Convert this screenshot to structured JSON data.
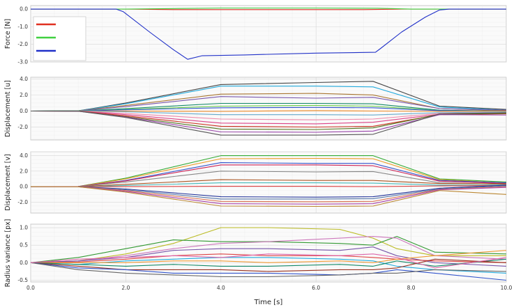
{
  "chart_data": [
    {
      "type": "line",
      "ylabel": "Force [N]",
      "xlim": [
        0,
        10
      ],
      "ylim": [
        -3.0,
        0.2
      ],
      "yticks": [
        "0.0",
        "-1.0",
        "-2.0",
        "-3.0"
      ],
      "grid": true,
      "legend": {
        "position": "top-left",
        "entries": [
          {
            "color": "#e03020",
            "label": ""
          },
          {
            "color": "#40d040",
            "label": ""
          },
          {
            "color": "#2030c8",
            "label": ""
          }
        ]
      },
      "series": [
        {
          "color": "#e03020",
          "x": [
            0,
            2.0,
            3.0,
            5.0,
            7.0,
            7.8,
            10
          ],
          "y": [
            0,
            0,
            -0.03,
            -0.03,
            -0.03,
            0,
            0
          ]
        },
        {
          "color": "#40d040",
          "x": [
            0,
            2.0,
            3.0,
            4.0,
            6.0,
            7.3,
            8.0,
            10
          ],
          "y": [
            0,
            0,
            0.03,
            0.06,
            0.06,
            0.05,
            0,
            0
          ]
        },
        {
          "color": "#2030c8",
          "x": [
            0,
            1.8,
            1.95,
            2.5,
            3.0,
            3.3,
            3.6,
            4.5,
            6.0,
            7.25,
            7.35,
            7.8,
            8.3,
            8.6,
            8.8,
            10
          ],
          "y": [
            0,
            0,
            -0.15,
            -1.3,
            -2.3,
            -2.85,
            -2.65,
            -2.6,
            -2.5,
            -2.45,
            -2.25,
            -1.3,
            -0.45,
            -0.05,
            0,
            0
          ]
        }
      ]
    },
    {
      "type": "line",
      "ylabel": "Displacement [u]",
      "xlim": [
        0,
        10
      ],
      "ylim": [
        -3.6,
        4.2
      ],
      "yticks": [
        "4.0",
        "2.0",
        "0.0",
        "-2.0"
      ],
      "grid": true,
      "series": [
        {
          "color": "#444444",
          "x": [
            0,
            1,
            2,
            4,
            6,
            7.2,
            8.6,
            10
          ],
          "y": [
            0,
            0.02,
            1.0,
            3.3,
            3.55,
            3.7,
            0.6,
            0.2
          ]
        },
        {
          "color": "#22aadd",
          "x": [
            0,
            1,
            2,
            4,
            6,
            7.2,
            8.6,
            10
          ],
          "y": [
            0,
            0.02,
            0.9,
            3.1,
            3.1,
            3.0,
            0.5,
            0.1
          ]
        },
        {
          "color": "#aa7733",
          "x": [
            0,
            1,
            2,
            4,
            6,
            7.2,
            8.6,
            10
          ],
          "y": [
            0,
            0.02,
            0.7,
            2.1,
            2.2,
            2.0,
            0.3,
            0.05
          ]
        },
        {
          "color": "#7755aa",
          "x": [
            0,
            1,
            2,
            4,
            6,
            7.2,
            8.6,
            10
          ],
          "y": [
            0,
            0.02,
            0.55,
            1.8,
            1.6,
            1.7,
            0.3,
            0.1
          ]
        },
        {
          "color": "#118866",
          "x": [
            0,
            1,
            2,
            4,
            6,
            7.2,
            8.6,
            10
          ],
          "y": [
            0,
            0.01,
            0.3,
            0.95,
            0.95,
            0.9,
            0.1,
            0.0
          ]
        },
        {
          "color": "#66cc44",
          "x": [
            0,
            1,
            2,
            4,
            6,
            7.2,
            8.6,
            10
          ],
          "y": [
            0,
            0.01,
            0.2,
            0.6,
            0.7,
            0.6,
            0.05,
            0.0
          ]
        },
        {
          "color": "#3355cc",
          "x": [
            0,
            1,
            2,
            4,
            6,
            7.2,
            8.6,
            10
          ],
          "y": [
            0,
            0.0,
            0.15,
            0.4,
            0.45,
            0.4,
            0.05,
            0.0
          ]
        },
        {
          "color": "#ee8822",
          "x": [
            0,
            1,
            2,
            4,
            6,
            7.2,
            8.6,
            10
          ],
          "y": [
            0,
            0.0,
            0.0,
            -0.05,
            0.05,
            0.0,
            -0.05,
            0.0
          ]
        },
        {
          "color": "#66aacc",
          "x": [
            0,
            1,
            2,
            4,
            6,
            7.2,
            8.6,
            10
          ],
          "y": [
            0,
            0.0,
            -0.1,
            -0.45,
            -0.45,
            -0.5,
            -0.2,
            -0.1
          ]
        },
        {
          "color": "#ee88aa",
          "x": [
            0,
            1,
            2,
            4,
            6,
            7.2,
            8.6,
            10
          ],
          "y": [
            0,
            -0.01,
            -0.3,
            -1.0,
            -1.1,
            -1.0,
            -0.3,
            -0.2
          ]
        },
        {
          "color": "#dd4488",
          "x": [
            0,
            1,
            2,
            4,
            6,
            7.2,
            8.6,
            10
          ],
          "y": [
            0,
            -0.01,
            -0.45,
            -1.5,
            -1.6,
            -1.4,
            -0.4,
            -0.3
          ]
        },
        {
          "color": "#cc3322",
          "x": [
            0,
            1,
            2,
            4,
            6,
            7.2,
            8.6,
            10
          ],
          "y": [
            0,
            -0.01,
            -0.6,
            -1.9,
            -2.0,
            -1.9,
            -0.45,
            -0.35
          ]
        },
        {
          "color": "#557722",
          "x": [
            0,
            1,
            2,
            4,
            6,
            7.2,
            8.6,
            10
          ],
          "y": [
            0,
            -0.02,
            -0.7,
            -2.25,
            -2.3,
            -2.1,
            -0.4,
            -0.3
          ]
        },
        {
          "color": "#9944aa",
          "x": [
            0,
            1,
            2,
            4,
            6,
            7.2,
            8.6,
            10
          ],
          "y": [
            0,
            -0.02,
            -0.75,
            -2.6,
            -2.65,
            -2.5,
            -0.45,
            -0.5
          ]
        },
        {
          "color": "#555555",
          "x": [
            0,
            1,
            2,
            4,
            6,
            7.2,
            8.6,
            10
          ],
          "y": [
            0,
            -0.02,
            -0.8,
            -3.0,
            -3.0,
            -2.9,
            -0.35,
            -0.2
          ]
        }
      ]
    },
    {
      "type": "line",
      "ylabel": "Displacement [v]",
      "xlim": [
        0,
        10
      ],
      "ylim": [
        -3.4,
        4.5
      ],
      "yticks": [
        "4.0",
        "2.0",
        "0.0",
        "-2.0"
      ],
      "grid": true,
      "series": [
        {
          "color": "#33aa33",
          "x": [
            0,
            1,
            2,
            4,
            6,
            7.2,
            8.6,
            10
          ],
          "y": [
            0,
            0.02,
            1.1,
            4.0,
            4.0,
            4.0,
            1.0,
            0.6
          ]
        },
        {
          "color": "#ee9922",
          "x": [
            0,
            1,
            2,
            4,
            6,
            7.2,
            8.6,
            10
          ],
          "y": [
            0,
            0.02,
            1.0,
            3.6,
            3.65,
            3.6,
            0.9,
            0.5
          ]
        },
        {
          "color": "#3355cc",
          "x": [
            0,
            1,
            2,
            4,
            6,
            7.2,
            8.6,
            10
          ],
          "y": [
            0,
            0.02,
            0.8,
            3.1,
            3.0,
            3.0,
            0.8,
            0.5
          ]
        },
        {
          "color": "#cc2255",
          "x": [
            0,
            1,
            2,
            4,
            6,
            7.2,
            8.6,
            10
          ],
          "y": [
            0,
            0.02,
            0.75,
            2.8,
            2.8,
            2.7,
            0.7,
            0.4
          ]
        },
        {
          "color": "#888888",
          "x": [
            0,
            1,
            2,
            4,
            6,
            7.2,
            8.6,
            10
          ],
          "y": [
            0,
            0.01,
            0.6,
            2.0,
            1.9,
            1.95,
            0.5,
            0.3
          ]
        },
        {
          "color": "#aa5522",
          "x": [
            0,
            1,
            2,
            4,
            6,
            7.2,
            8.6,
            10
          ],
          "y": [
            0,
            0.01,
            0.3,
            0.9,
            0.8,
            0.8,
            0.4,
            0.35
          ]
        },
        {
          "color": "#44bbbb",
          "x": [
            0,
            1,
            2,
            4,
            6,
            7.2,
            8.6,
            10
          ],
          "y": [
            0,
            0.0,
            0.15,
            0.5,
            0.5,
            0.45,
            0.2,
            0.2
          ]
        },
        {
          "color": "#dd4444",
          "x": [
            0,
            1,
            2,
            4,
            6,
            7.2,
            8.6,
            10
          ],
          "y": [
            0,
            0.0,
            0.0,
            0.05,
            0.05,
            0.0,
            0.1,
            0.15
          ]
        },
        {
          "color": "#223399",
          "x": [
            0,
            1,
            2,
            4,
            6,
            7.2,
            8.6,
            10
          ],
          "y": [
            0,
            0.0,
            -0.3,
            -1.3,
            -1.35,
            -1.3,
            -0.2,
            0.2
          ]
        },
        {
          "color": "#5577aa",
          "x": [
            0,
            1,
            2,
            4,
            6,
            7.2,
            8.6,
            10
          ],
          "y": [
            0,
            -0.01,
            -0.4,
            -1.6,
            -1.6,
            -1.55,
            -0.3,
            0.1
          ]
        },
        {
          "color": "#dd7755",
          "x": [
            0,
            1,
            2,
            4,
            6,
            7.2,
            8.6,
            10
          ],
          "y": [
            0,
            -0.01,
            -0.5,
            -1.9,
            -1.95,
            -1.9,
            -0.35,
            0.0
          ]
        },
        {
          "color": "#aa44aa",
          "x": [
            0,
            1,
            2,
            4,
            6,
            7.2,
            8.6,
            10
          ],
          "y": [
            0,
            -0.02,
            -0.6,
            -2.2,
            -2.25,
            -2.2,
            -0.4,
            -0.1
          ]
        },
        {
          "color": "#bb8833",
          "x": [
            0,
            1,
            2,
            4,
            6,
            7.2,
            8.6,
            10
          ],
          "y": [
            0,
            -0.02,
            -0.7,
            -2.5,
            -2.55,
            -2.5,
            -0.5,
            -1.0
          ]
        }
      ]
    },
    {
      "type": "line",
      "ylabel": "Radius variance [px]",
      "xlabel": "Time [s]",
      "xlim": [
        0,
        10
      ],
      "ylim": [
        -0.55,
        1.1
      ],
      "yticks": [
        "1.0",
        "0.5",
        "0.0",
        "-0.5"
      ],
      "xticks": [
        "0.0",
        "2.0",
        "4.0",
        "6.0",
        "8.0",
        "10.0"
      ],
      "grid": true,
      "series": [
        {
          "color": "#bbbb22",
          "x": [
            0,
            1,
            2,
            3,
            4,
            5,
            6.5,
            7.2,
            7.7,
            8.5,
            10
          ],
          "y": [
            0,
            0.05,
            0.25,
            0.55,
            1.0,
            1.0,
            0.95,
            0.7,
            0.4,
            0.2,
            0.2
          ]
        },
        {
          "color": "#339933",
          "x": [
            0,
            1,
            2,
            3,
            4,
            5,
            6.5,
            7.2,
            7.7,
            8.5,
            10
          ],
          "y": [
            0,
            0.15,
            0.4,
            0.65,
            0.6,
            0.6,
            0.55,
            0.5,
            0.75,
            0.3,
            0.25
          ]
        },
        {
          "color": "#cc77bb",
          "x": [
            0,
            1,
            2,
            3,
            4,
            5,
            6.5,
            7.2,
            7.7,
            8.5,
            10
          ],
          "y": [
            0,
            0.05,
            0.2,
            0.4,
            0.55,
            0.6,
            0.7,
            0.75,
            0.7,
            0.2,
            0.1
          ]
        },
        {
          "color": "#7755aa",
          "x": [
            0,
            1,
            2,
            3,
            4,
            5,
            6.5,
            7.2,
            7.7,
            8.5,
            10
          ],
          "y": [
            0,
            0.05,
            0.15,
            0.35,
            0.4,
            0.4,
            0.35,
            0.45,
            0.2,
            0.0,
            -0.1
          ]
        },
        {
          "color": "#dd4444",
          "x": [
            0,
            1,
            2,
            3,
            4,
            5,
            6.5,
            7.2,
            7.7,
            8.5,
            10
          ],
          "y": [
            0,
            0.02,
            0.1,
            0.2,
            0.25,
            0.2,
            0.2,
            0.15,
            0.1,
            0.05,
            0.0
          ]
        },
        {
          "color": "#22aadd",
          "x": [
            0,
            1,
            2,
            3,
            4,
            5,
            6.5,
            7.2,
            7.7,
            8.5,
            10
          ],
          "y": [
            0,
            -0.05,
            0.05,
            0.1,
            0.15,
            0.15,
            0.1,
            0.05,
            -0.1,
            -0.2,
            -0.3
          ]
        },
        {
          "color": "#ee9933",
          "x": [
            0,
            1,
            2,
            3,
            4,
            5,
            6.5,
            7.2,
            7.7,
            8.5,
            10
          ],
          "y": [
            0,
            0.0,
            0.0,
            0.05,
            0.05,
            0.0,
            0.05,
            0.0,
            0.1,
            0.2,
            0.35
          ]
        },
        {
          "color": "#118866",
          "x": [
            0,
            1,
            2,
            3,
            4,
            5,
            6.5,
            7.2,
            7.7,
            8.5,
            10
          ],
          "y": [
            0,
            -0.05,
            -0.1,
            -0.05,
            -0.1,
            -0.1,
            -0.05,
            -0.1,
            0.05,
            -0.1,
            0.1
          ]
        },
        {
          "color": "#993322",
          "x": [
            0,
            1,
            2,
            3,
            4,
            5,
            6.5,
            7.2,
            7.7,
            8.5,
            10
          ],
          "y": [
            0,
            -0.1,
            -0.2,
            -0.2,
            -0.2,
            -0.25,
            -0.2,
            -0.2,
            -0.15,
            0.1,
            0.0
          ]
        },
        {
          "color": "#3355cc",
          "x": [
            0,
            1,
            2,
            3,
            4,
            5,
            6.5,
            7.2,
            7.7,
            8.5,
            10
          ],
          "y": [
            0,
            -0.15,
            -0.2,
            -0.3,
            -0.3,
            -0.3,
            -0.35,
            -0.3,
            -0.2,
            -0.3,
            -0.5
          ]
        },
        {
          "color": "#666666",
          "x": [
            0,
            1,
            2,
            3,
            4,
            5,
            6.5,
            7.2,
            7.7,
            8.5,
            10
          ],
          "y": [
            0,
            -0.2,
            -0.3,
            -0.35,
            -0.4,
            -0.4,
            -0.35,
            -0.3,
            -0.3,
            -0.2,
            -0.25
          ]
        },
        {
          "color": "#dd66aa",
          "x": [
            0,
            1,
            2,
            3,
            4,
            5,
            6.5,
            7.2,
            7.7,
            8.5,
            10
          ],
          "y": [
            0,
            0.1,
            0.15,
            0.2,
            0.15,
            0.25,
            0.2,
            0.25,
            0.15,
            -0.15,
            0.15
          ]
        }
      ]
    }
  ]
}
